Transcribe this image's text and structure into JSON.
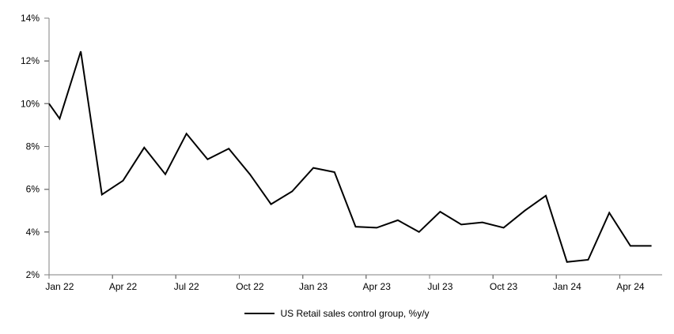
{
  "chart_data": {
    "type": "line",
    "title": "",
    "legend_position": "bottom-center",
    "grid": false,
    "background_color": "#ffffff",
    "axis_color": "#808080",
    "text_color": "#000000",
    "ylim": [
      2,
      14
    ],
    "y_ticks": [
      14,
      12,
      10,
      8,
      6,
      4,
      2
    ],
    "y_tick_labels": [
      "14%",
      "12%",
      "10%",
      "8%",
      "6%",
      "4%",
      "2%"
    ],
    "x_tick_labels": [
      "Jan 22",
      "Apr 22",
      "Jul 22",
      "Oct 22",
      "Jan 23",
      "Apr 23",
      "Jul 23",
      "Oct 23",
      "Jan 24",
      "Apr 24"
    ],
    "x": [
      "Dec 21",
      "Jan 22",
      "Feb 22",
      "Mar 22",
      "Apr 22",
      "May 22",
      "Jun 22",
      "Jul 22",
      "Aug 22",
      "Sep 22",
      "Oct 22",
      "Nov 22",
      "Dec 22",
      "Jan 23",
      "Feb 23",
      "Mar 23",
      "Apr 23",
      "May 23",
      "Jun 23",
      "Jul 23",
      "Aug 23",
      "Sep 23",
      "Oct 23",
      "Nov 23",
      "Dec 23",
      "Jan 24",
      "Feb 24",
      "Mar 24",
      "Apr 24",
      "May 24"
    ],
    "first_point_on_axis": true,
    "series": [
      {
        "name": "US Retail sales control group, %y/y",
        "color": "#000000",
        "values": [
          10.0,
          9.3,
          12.45,
          5.75,
          6.4,
          7.95,
          6.7,
          8.6,
          7.4,
          7.9,
          6.7,
          5.3,
          5.9,
          7.0,
          6.8,
          4.25,
          4.2,
          4.55,
          4.0,
          4.95,
          4.35,
          4.45,
          4.2,
          5.0,
          5.7,
          2.6,
          2.7,
          4.9,
          3.35,
          3.35
        ]
      }
    ]
  }
}
